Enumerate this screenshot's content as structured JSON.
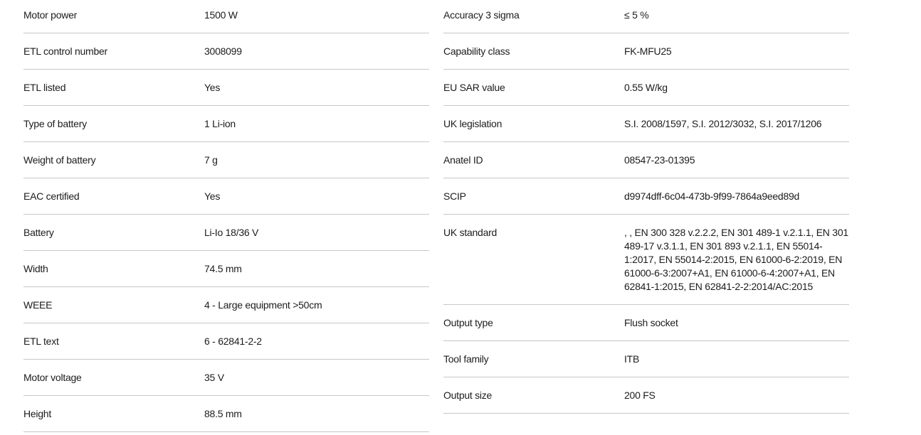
{
  "page": {
    "background_color": "#ffffff",
    "text_color": "#1c1c1c",
    "divider_color": "#c7c7c7"
  },
  "spec_table": {
    "columns": [
      {
        "name": "left",
        "rows": [
          {
            "label": "Motor power",
            "value": "1500 W"
          },
          {
            "label": "ETL control number",
            "value": "3008099"
          },
          {
            "label": "ETL listed",
            "value": "Yes"
          },
          {
            "label": "Type of battery",
            "value": "1 Li-ion"
          },
          {
            "label": "Weight of battery",
            "value": "7 g"
          },
          {
            "label": "EAC certified",
            "value": "Yes"
          },
          {
            "label": "Battery",
            "value": "Li-Io 18/36 V"
          },
          {
            "label": "Width",
            "value": "74.5 mm"
          },
          {
            "label": "WEEE",
            "value": "4 - Large equipment >50cm"
          },
          {
            "label": "ETL text",
            "value": "6 - 62841-2-2"
          },
          {
            "label": "Motor voltage",
            "value": "35 V"
          },
          {
            "label": "Height",
            "value": "88.5 mm"
          }
        ]
      },
      {
        "name": "right",
        "rows": [
          {
            "label": "Accuracy 3 sigma",
            "value": "≤ 5 %"
          },
          {
            "label": "Capability class",
            "value": "FK-MFU25"
          },
          {
            "label": "EU SAR value",
            "value": "0.55 W/kg"
          },
          {
            "label": "UK legislation",
            "value": "S.I. 2008/1597, S.I. 2012/3032, S.I. 2017/1206"
          },
          {
            "label": "Anatel ID",
            "value": "08547-23-01395"
          },
          {
            "label": "SCIP",
            "value": "d9974dff-6c04-473b-9f99-7864a9eed89d"
          },
          {
            "label": "UK standard",
            "value": ", , EN 300 328 v.2.2.2, EN 301 489-1 v.2.1.1, EN 301 489-17 v.3.1.1, EN 301 893 v.2.1.1, EN 55014-1:2017, EN 55014-2:2015, EN 61000-6-2:2019, EN 61000-6-3:2007+A1, EN 61000-6-4:2007+A1, EN 62841-1:2015, EN 62841-2-2:2014/AC:2015"
          },
          {
            "label": "Output type",
            "value": "Flush socket"
          },
          {
            "label": "Tool family",
            "value": "ITB"
          },
          {
            "label": "Output size",
            "value": "200 FS"
          }
        ]
      }
    ]
  }
}
